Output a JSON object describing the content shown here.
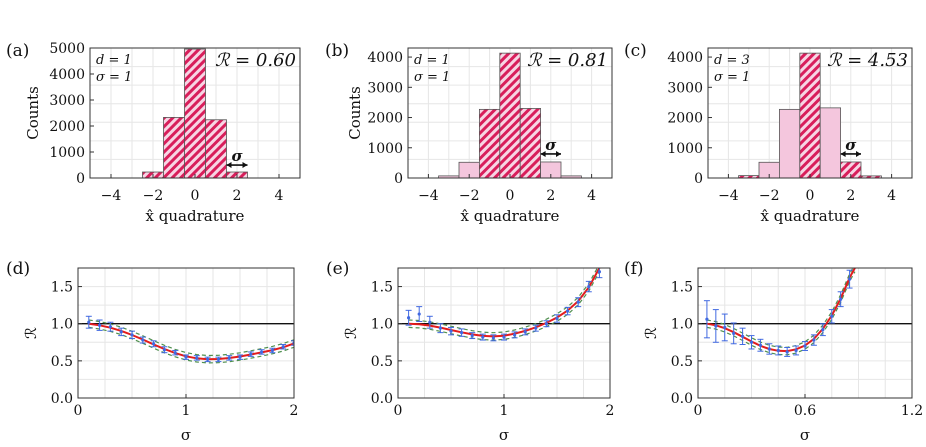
{
  "chart_data": [
    {
      "type": "bar",
      "panel_label": "(a)",
      "title": "",
      "xlabel": "x̂ quadrature",
      "ylabel": "Counts",
      "annotation": "ℛ = 0.60",
      "params": [
        "d = 1",
        "σ = 1"
      ],
      "sigma_label": "σ",
      "sigma_span": [
        1.5,
        2.5
      ],
      "bin_edges": [
        -2.5,
        -1.5,
        -0.5,
        0.5,
        1.5,
        2.5
      ],
      "values": [
        230,
        2330,
        4960,
        2240,
        230
      ],
      "hatched": [
        true,
        true,
        true,
        true,
        true
      ],
      "xlim": [
        -5,
        5
      ],
      "ylim": [
        0,
        5000
      ],
      "xticks": [
        -4,
        -2,
        0,
        2,
        4
      ],
      "yticks": [
        0,
        1000,
        2000,
        3000,
        4000,
        5000
      ],
      "grid": true,
      "colors": {
        "hatched": "#d81e5b",
        "plain": "#f4c6dd"
      }
    },
    {
      "type": "bar",
      "panel_label": "(b)",
      "title": "",
      "xlabel": "x̂ quadrature",
      "ylabel": "Counts",
      "annotation": "ℛ = 0.81",
      "params": [
        "d = 1",
        "σ = 1"
      ],
      "sigma_label": "σ",
      "sigma_span": [
        1.5,
        2.5
      ],
      "bin_edges": [
        -3.5,
        -2.5,
        -1.5,
        -0.5,
        0.5,
        1.5,
        2.5,
        3.5
      ],
      "values": [
        70,
        520,
        2270,
        4130,
        2300,
        530,
        70
      ],
      "hatched": [
        false,
        false,
        true,
        true,
        true,
        false,
        false
      ],
      "xlim": [
        -5,
        5
      ],
      "ylim": [
        0,
        4300
      ],
      "xticks": [
        -4,
        -2,
        0,
        2,
        4
      ],
      "yticks": [
        0,
        1000,
        2000,
        3000,
        4000
      ],
      "grid": true,
      "colors": {
        "hatched": "#d81e5b",
        "plain": "#f4c6dd"
      }
    },
    {
      "type": "bar",
      "panel_label": "(c)",
      "title": "",
      "xlabel": "x̂ quadrature",
      "ylabel": "",
      "annotation": "ℛ = 4.53",
      "params": [
        "d = 3",
        "σ = 1"
      ],
      "sigma_label": "σ",
      "sigma_span": [
        1.5,
        2.5
      ],
      "bin_edges": [
        -3.5,
        -2.5,
        -1.5,
        -0.5,
        0.5,
        1.5,
        2.5,
        3.5
      ],
      "values": [
        80,
        520,
        2270,
        4130,
        2320,
        530,
        70
      ],
      "hatched": [
        true,
        false,
        false,
        true,
        false,
        true,
        true
      ],
      "xlim": [
        -5,
        5
      ],
      "ylim": [
        0,
        4300
      ],
      "xticks": [
        -4,
        -2,
        0,
        2,
        4
      ],
      "yticks": [
        0,
        1000,
        2000,
        3000,
        4000
      ],
      "grid": true,
      "colors": {
        "hatched": "#d81e5b",
        "plain": "#f4c6dd"
      }
    },
    {
      "type": "line",
      "panel_label": "(d)",
      "title": "",
      "xlabel": "σ",
      "ylabel": "ℛ",
      "xlim": [
        0,
        2
      ],
      "ylim": [
        0,
        1.75
      ],
      "xticks": [
        0,
        1,
        2
      ],
      "xtick_labels": [
        "0",
        "1",
        "2"
      ],
      "yticks": [
        0,
        0.5,
        1.0,
        1.5
      ],
      "ytick_labels": [
        "0.0",
        "0.5",
        "1.0",
        "1.5"
      ],
      "reference_line": 1.0,
      "grid": true,
      "series": [
        {
          "x": [
            0.1,
            0.2,
            0.3,
            0.4,
            0.5,
            0.6,
            0.7,
            0.8,
            0.9,
            1.0,
            1.1,
            1.2,
            1.3,
            1.4,
            1.5,
            1.6,
            1.7,
            1.8,
            1.9,
            2.0
          ],
          "values": [
            1.0,
            0.979,
            0.947,
            0.903,
            0.848,
            0.787,
            0.721,
            0.659,
            0.604,
            0.561,
            0.534,
            0.522,
            0.525,
            0.538,
            0.559,
            0.586,
            0.614,
            0.645,
            0.683,
            0.733
          ]
        }
      ],
      "band": 0.05,
      "points": {
        "x": [
          0.1,
          0.2,
          0.3,
          0.4,
          0.5,
          0.6,
          0.7,
          0.8,
          0.9,
          1.0,
          1.1,
          1.2,
          1.3,
          1.4,
          1.5,
          1.6,
          1.7,
          1.8,
          1.9,
          2.0
        ],
        "values": [
          1.02,
          0.98,
          0.96,
          0.89,
          0.85,
          0.78,
          0.73,
          0.65,
          0.61,
          0.55,
          0.54,
          0.52,
          0.52,
          0.54,
          0.55,
          0.59,
          0.62,
          0.64,
          0.69,
          0.74
        ],
        "err": [
          0.08,
          0.07,
          0.06,
          0.05,
          0.05,
          0.04,
          0.04,
          0.04,
          0.03,
          0.03,
          0.03,
          0.03,
          0.03,
          0.03,
          0.03,
          0.03,
          0.03,
          0.03,
          0.03,
          0.03
        ]
      },
      "colors": {
        "theory": "#e21d1d",
        "reference": "#111111",
        "band": "#4f8f4f",
        "points": "#4169e1"
      }
    },
    {
      "type": "line",
      "panel_label": "(e)",
      "title": "",
      "xlabel": "σ",
      "ylabel": "ℛ",
      "xlim": [
        0,
        2
      ],
      "ylim": [
        0,
        1.75
      ],
      "xticks": [
        0,
        1,
        2
      ],
      "xtick_labels": [
        "0",
        "1",
        "2"
      ],
      "yticks": [
        0,
        0.5,
        1.0,
        1.5
      ],
      "ytick_labels": [
        "0.0",
        "0.5",
        "1.0",
        "1.5"
      ],
      "reference_line": 1.0,
      "grid": true,
      "series": [
        {
          "x": [
            0.1,
            0.2,
            0.3,
            0.4,
            0.5,
            0.6,
            0.7,
            0.8,
            0.9,
            1.0,
            1.1,
            1.2,
            1.3,
            1.4,
            1.5,
            1.6,
            1.7,
            1.8,
            1.9
          ],
          "values": [
            1.0,
            0.993,
            0.975,
            0.948,
            0.916,
            0.884,
            0.856,
            0.836,
            0.829,
            0.839,
            0.865,
            0.903,
            0.952,
            1.011,
            1.083,
            1.176,
            1.305,
            1.49,
            1.75
          ]
        }
      ],
      "band": 0.05,
      "points": {
        "x": [
          0.1,
          0.2,
          0.3,
          0.4,
          0.5,
          0.6,
          0.7,
          0.8,
          0.9,
          1.0,
          1.1,
          1.2,
          1.3,
          1.4,
          1.5,
          1.6,
          1.7,
          1.8,
          1.9
        ],
        "values": [
          1.08,
          1.13,
          1.02,
          0.94,
          0.9,
          0.88,
          0.84,
          0.82,
          0.81,
          0.82,
          0.85,
          0.89,
          0.94,
          1.0,
          1.07,
          1.17,
          1.29,
          1.5,
          1.7
        ],
        "err": [
          0.1,
          0.1,
          0.08,
          0.06,
          0.05,
          0.05,
          0.04,
          0.04,
          0.04,
          0.04,
          0.04,
          0.04,
          0.04,
          0.04,
          0.05,
          0.05,
          0.06,
          0.07,
          0.08
        ]
      },
      "colors": {
        "theory": "#e21d1d",
        "reference": "#111111",
        "band": "#4f8f4f",
        "points": "#4169e1"
      }
    },
    {
      "type": "line",
      "panel_label": "(f)",
      "title": "",
      "xlabel": "σ",
      "ylabel": "ℛ",
      "xlim": [
        0,
        1.2
      ],
      "ylim": [
        0,
        1.75
      ],
      "xticks": [
        0,
        0.6,
        1.2
      ],
      "xtick_labels": [
        "0",
        "0.6",
        "1.2"
      ],
      "yticks": [
        0,
        0.5,
        1.0,
        1.5
      ],
      "ytick_labels": [
        "0.0",
        "0.5",
        "1.0",
        "1.5"
      ],
      "reference_line": 1.0,
      "grid": true,
      "series": [
        {
          "x": [
            0.05,
            0.1,
            0.15,
            0.2,
            0.25,
            0.3,
            0.35,
            0.4,
            0.45,
            0.5,
            0.55,
            0.6,
            0.65,
            0.7,
            0.75,
            0.8,
            0.85,
            0.88
          ],
          "values": [
            1.0,
            0.978,
            0.939,
            0.886,
            0.824,
            0.76,
            0.703,
            0.66,
            0.635,
            0.632,
            0.655,
            0.707,
            0.795,
            0.93,
            1.11,
            1.34,
            1.62,
            1.75
          ]
        }
      ],
      "band": 0.05,
      "points": {
        "x": [
          0.05,
          0.1,
          0.15,
          0.2,
          0.25,
          0.3,
          0.35,
          0.4,
          0.45,
          0.5,
          0.55,
          0.6,
          0.65,
          0.7,
          0.75,
          0.8,
          0.85
        ],
        "values": [
          1.06,
          0.97,
          0.95,
          0.87,
          0.83,
          0.75,
          0.71,
          0.66,
          0.64,
          0.62,
          0.64,
          0.7,
          0.78,
          0.92,
          1.1,
          1.33,
          1.6
        ],
        "err": [
          0.25,
          0.22,
          0.18,
          0.14,
          0.11,
          0.09,
          0.08,
          0.07,
          0.06,
          0.06,
          0.06,
          0.06,
          0.07,
          0.08,
          0.09,
          0.1,
          0.12
        ]
      },
      "colors": {
        "theory": "#e21d1d",
        "reference": "#111111",
        "band": "#4f8f4f",
        "points": "#4169e1"
      }
    }
  ]
}
